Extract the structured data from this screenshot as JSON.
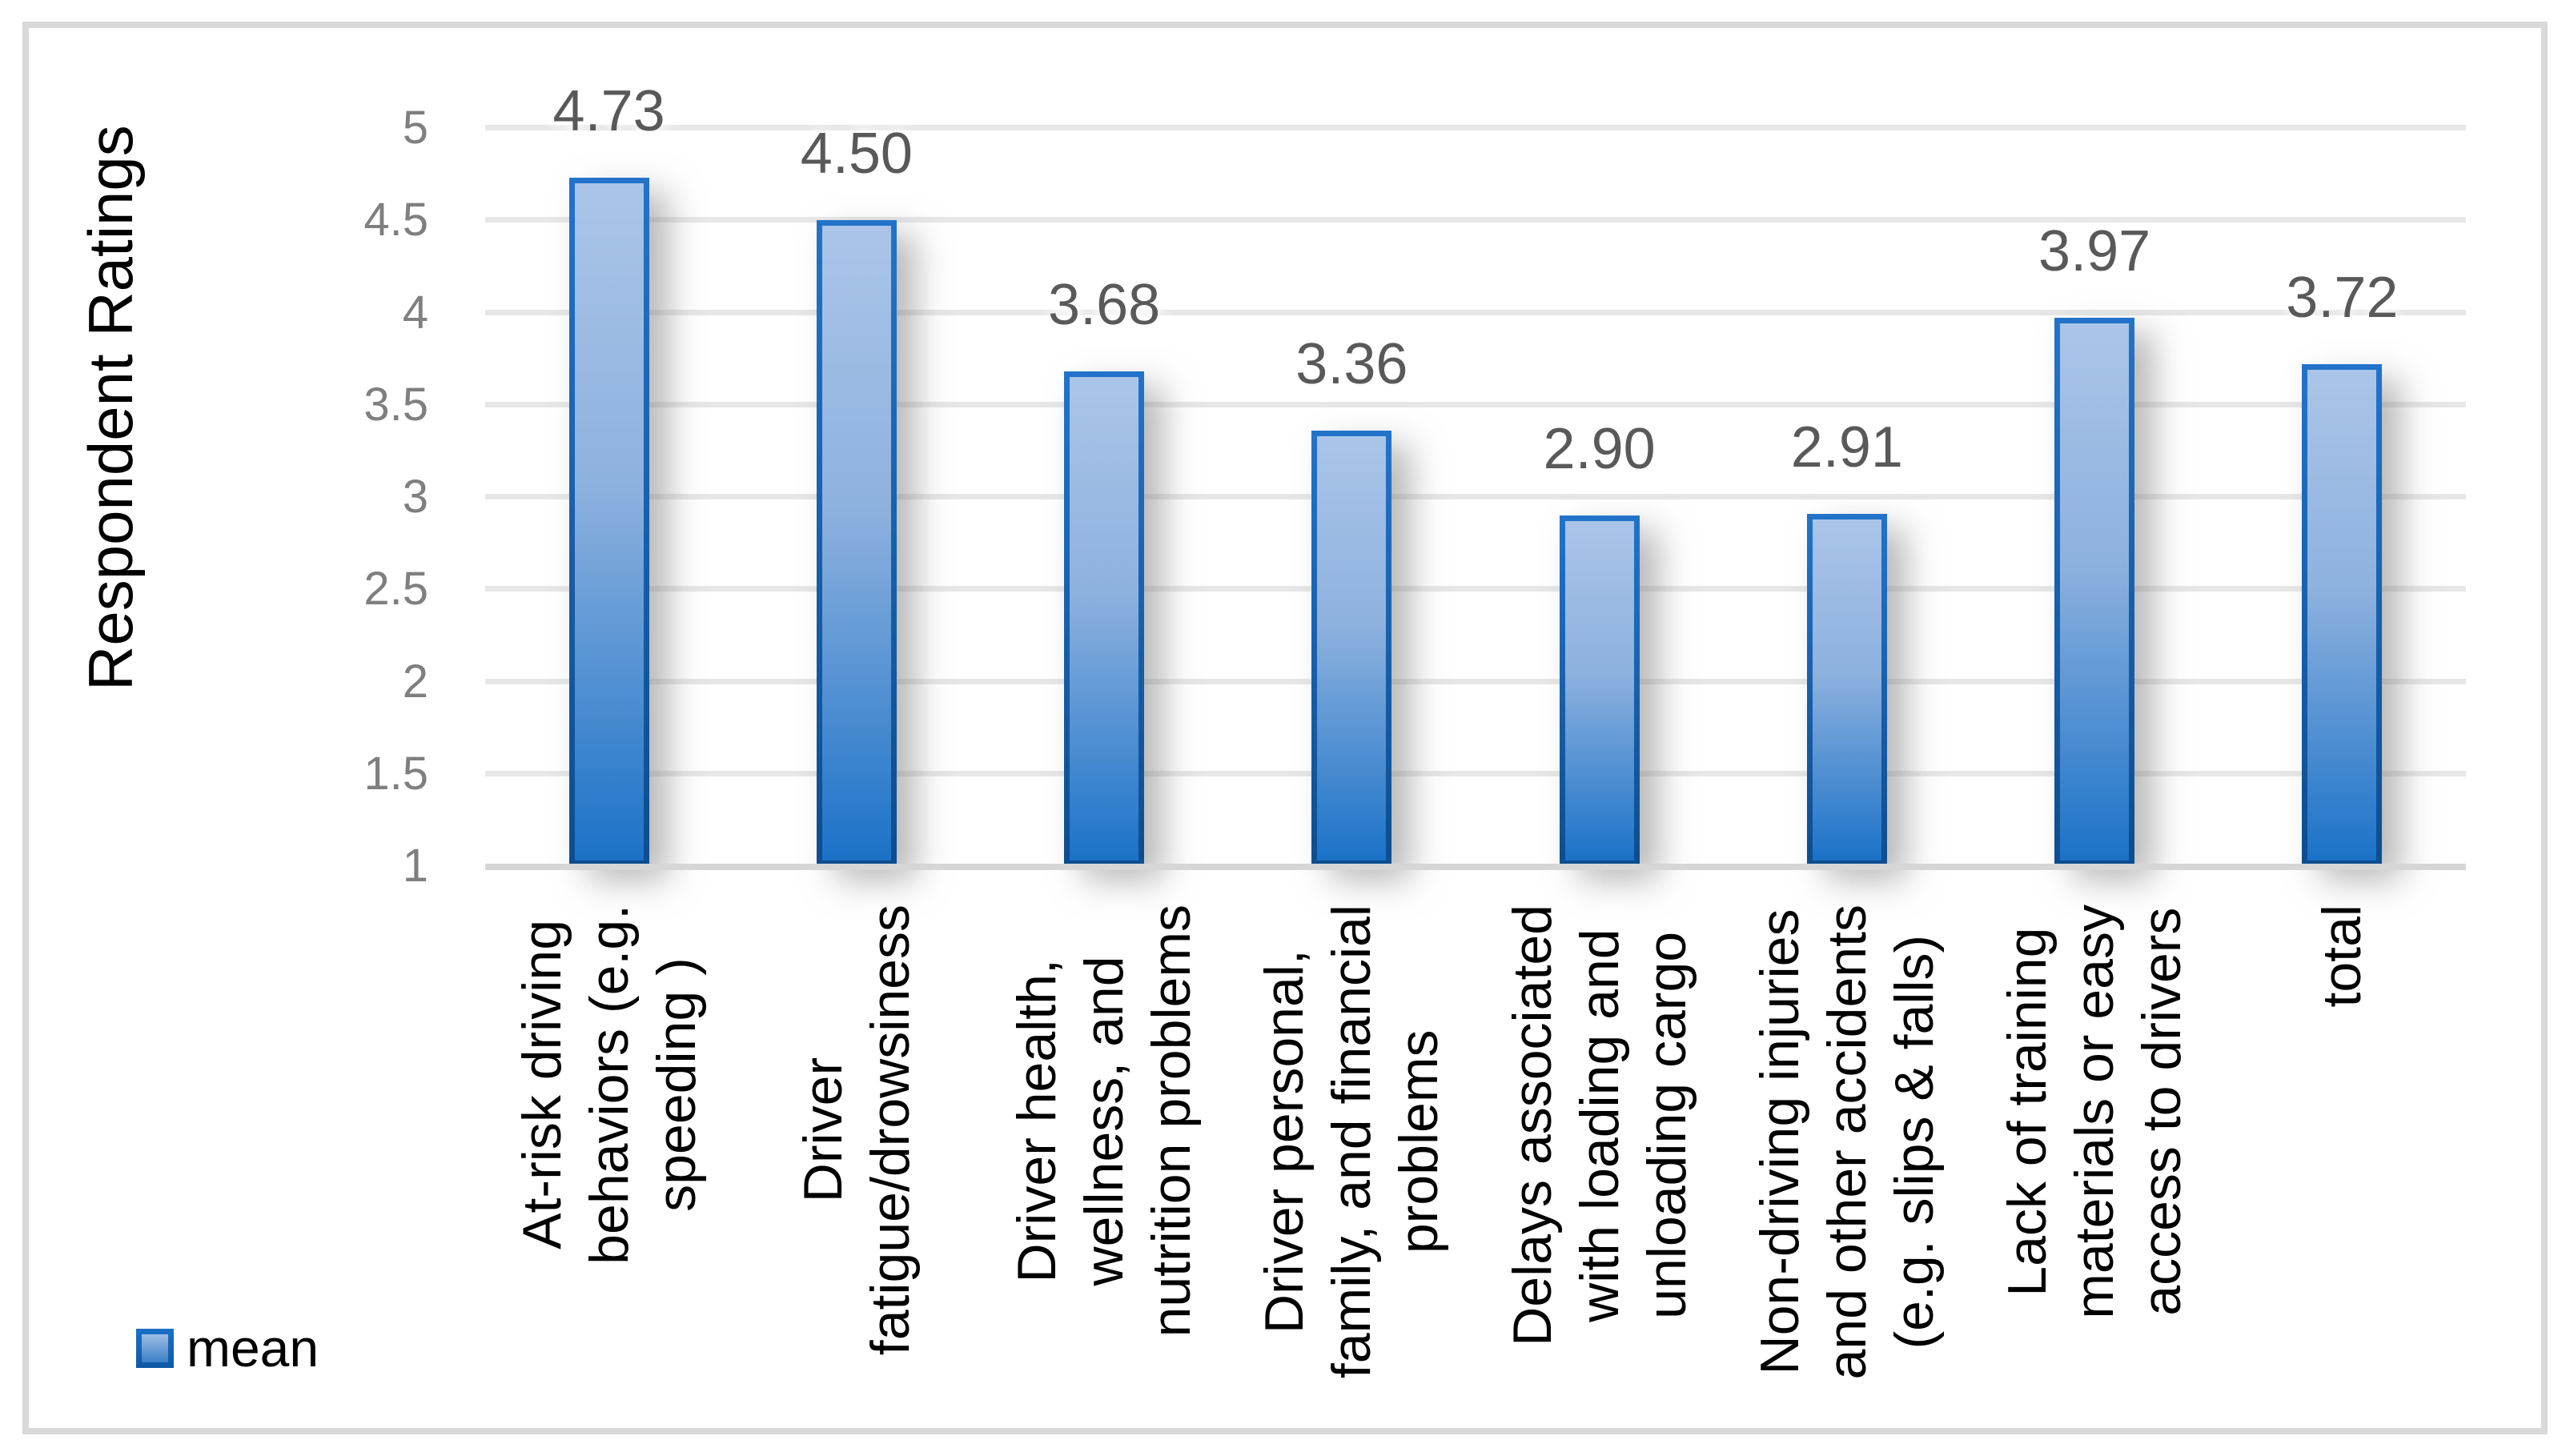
{
  "legend": {
    "label": "mean"
  },
  "chart_data": {
    "type": "bar",
    "title": "",
    "xlabel": "",
    "ylabel": "Respondent Ratings",
    "ylim": [
      1,
      5
    ],
    "ytick_step": 0.5,
    "tick_labels": [
      "5",
      "4.5",
      "4",
      "3.5",
      "3",
      "2.5",
      "2",
      "1.5",
      "1"
    ],
    "grid": true,
    "legend_position": "bottom-left",
    "series_name": "mean",
    "categories": [
      "At-risk driving behaviors (e.g. speeding )",
      "Driver fatigue/drowsiness",
      "Driver health, wellness, and nutrition problems",
      "Driver personal, family, and financial problems",
      "Delays associated with loading and unloading cargo",
      "Non-driving injuries and other accidents (e.g. slips & falls)",
      "Lack of training materials or easy access to drivers",
      "total"
    ],
    "categories_wrapped": [
      [
        "At-risk driving",
        "behaviors (e.g.",
        "speeding )"
      ],
      [
        "Driver",
        "fatigue/drowsiness"
      ],
      [
        "Driver health,",
        "wellness, and",
        "nutrition problems"
      ],
      [
        "Driver personal,",
        "family, and financial",
        "problems"
      ],
      [
        "Delays associated",
        "with loading and",
        "unloading cargo"
      ],
      [
        "Non-driving injuries",
        "and other accidents",
        "(e.g. slips & falls)"
      ],
      [
        "Lack of training",
        "materials or easy",
        "access to drivers"
      ],
      [
        "total"
      ]
    ],
    "values": [
      4.73,
      4.5,
      3.68,
      3.36,
      2.9,
      2.91,
      3.97,
      3.72
    ],
    "value_labels": [
      "4.73",
      "4.50",
      "3.68",
      "3.36",
      "2.90",
      "2.91",
      "3.97",
      "3.72"
    ],
    "colors": {
      "bar_fill_top": "#aac5e9",
      "bar_fill_bottom": "#1b72c8",
      "bar_border_top": "#2273c9",
      "bar_border_bottom": "#0d4d8f",
      "gridline": "#e7e7e7",
      "axis_line": "#d6d6d6",
      "tick_label": "#7f7f7f",
      "value_label": "#595959",
      "category_label": "#000000",
      "figure_border": "#d9d9d9"
    }
  }
}
